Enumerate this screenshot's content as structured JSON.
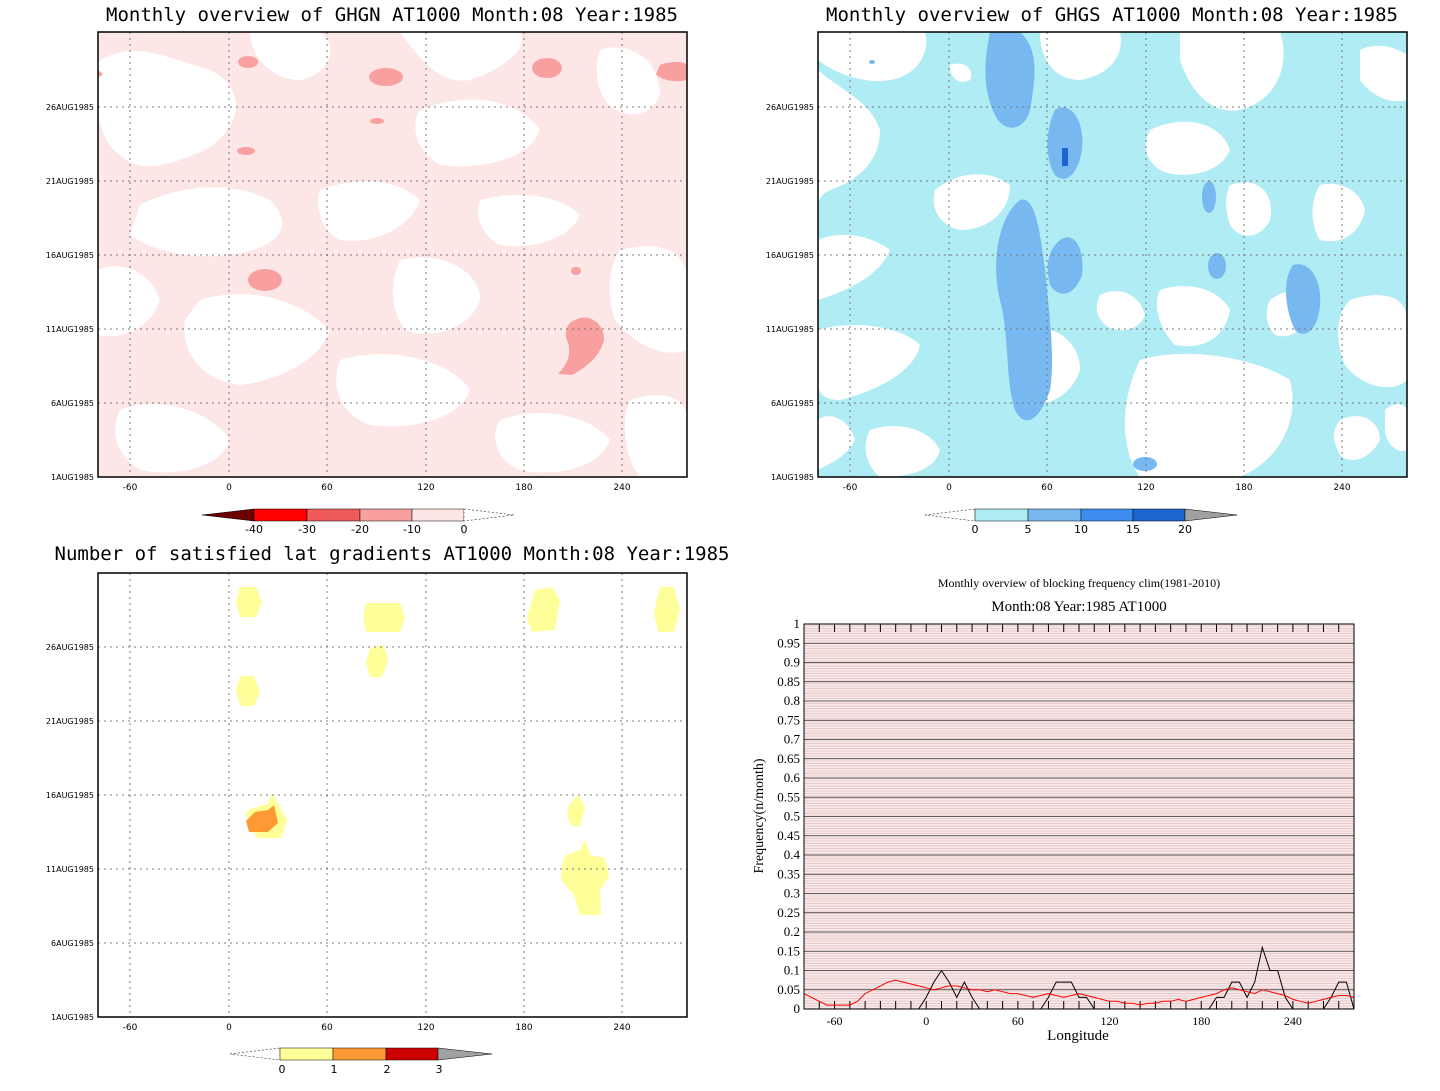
{
  "panels": {
    "ghgn": {
      "title": "Monthly overview of GHGN AT1000 Month:08 Year:1985"
    },
    "ghgs": {
      "title": "Monthly overview of GHGS AT1000 Month:08 Year:1985"
    },
    "grad": {
      "title": "Number of satisfied lat gradients AT1000 Month:08 Year:1985"
    },
    "freq": {
      "title_line1": "Monthly overview of blocking frequency clim(1981-2010)",
      "title_line2": "Month:08 Year:1985  AT1000"
    }
  },
  "chart_data": [
    {
      "type": "heatmap",
      "title": "Monthly overview of GHGN AT1000 Month:08 Year:1985",
      "x_ticks": [
        "-60",
        "0",
        "60",
        "120",
        "180",
        "240"
      ],
      "y_ticks": [
        "1AUG1985",
        "6AUG1985",
        "11AUG1985",
        "16AUG1985",
        "21AUG1985",
        "26AUG1985"
      ],
      "colorbar": {
        "labels": [
          "-40",
          "-30",
          "-20",
          "-10",
          "0"
        ],
        "colors": [
          "#6b0000",
          "#ff0000",
          "#f05a5a",
          "#f8a0a0",
          "#fde6e6"
        ]
      }
    },
    {
      "type": "heatmap",
      "title": "Monthly overview of GHGS AT1000 Month:08 Year:1985",
      "x_ticks": [
        "-60",
        "0",
        "60",
        "120",
        "180",
        "240"
      ],
      "y_ticks": [
        "1AUG1985",
        "6AUG1985",
        "11AUG1985",
        "16AUG1985",
        "21AUG1985",
        "26AUG1985"
      ],
      "colorbar": {
        "labels": [
          "0",
          "5",
          "10",
          "15",
          "20"
        ],
        "colors": [
          "#b0ecf4",
          "#78b8f0",
          "#3c8cf0",
          "#1c64d0",
          "#a0a0a0"
        ]
      }
    },
    {
      "type": "heatmap",
      "title": "Number of satisfied lat gradients AT1000 Month:08 Year:1985",
      "x_ticks": [
        "-60",
        "0",
        "60",
        "120",
        "180",
        "240"
      ],
      "y_ticks": [
        "1AUG1985",
        "6AUG1985",
        "11AUG1985",
        "16AUG1985",
        "21AUG1985",
        "26AUG1985"
      ],
      "colorbar": {
        "labels": [
          "0",
          "1",
          "2",
          "3"
        ],
        "colors": [
          "#ffff99",
          "#ff9933",
          "#cc0000",
          "#a0a0a0"
        ]
      }
    },
    {
      "type": "line",
      "xlabel": "Longitude",
      "ylabel": "Frequency(n/month)",
      "xlim": [
        -80,
        280
      ],
      "ylim": [
        0,
        1
      ],
      "x_ticks": [
        "-60",
        "0",
        "60",
        "120",
        "180",
        "240"
      ],
      "y_ticks": [
        "0",
        "0.05",
        "0.1",
        "0.15",
        "0.2",
        "0.25",
        "0.3",
        "0.35",
        "0.4",
        "0.45",
        "0.5",
        "0.55",
        "0.6",
        "0.65",
        "0.7",
        "0.75",
        "0.8",
        "0.85",
        "0.9",
        "0.95",
        "1"
      ],
      "series": [
        {
          "color": "#000000",
          "x": [
            -80,
            -75,
            -70,
            -5,
            0,
            5,
            10,
            15,
            20,
            25,
            30,
            35,
            40,
            45,
            50,
            55,
            60,
            65,
            70,
            75,
            80,
            85,
            90,
            95,
            100,
            105,
            110,
            115,
            120,
            125,
            130,
            135,
            140,
            145,
            150,
            155,
            160,
            165,
            170,
            175,
            180,
            185,
            190,
            195,
            200,
            205,
            210,
            215,
            220,
            225,
            230,
            235,
            240,
            245,
            250,
            255,
            260,
            265,
            270,
            275,
            280
          ],
          "y": [
            0,
            0,
            0,
            0,
            0.03,
            0.07,
            0.1,
            0.07,
            0.03,
            0.07,
            0.03,
            0,
            0,
            0,
            0,
            0,
            0,
            0,
            0,
            0,
            0.03,
            0.07,
            0.07,
            0.07,
            0.03,
            0.03,
            0,
            0,
            0,
            0,
            0,
            0,
            0,
            0,
            0,
            0,
            0,
            0,
            0,
            0,
            0,
            0,
            0.03,
            0.03,
            0.07,
            0.07,
            0.03,
            0.07,
            0.16,
            0.1,
            0.1,
            0.03,
            0,
            0,
            0,
            0,
            0,
            0.03,
            0.07,
            0.07,
            0
          ]
        },
        {
          "color": "#ff0000",
          "x": [
            -80,
            -75,
            -70,
            -65,
            -60,
            -55,
            -50,
            -45,
            -40,
            -35,
            -30,
            -25,
            -20,
            -15,
            -10,
            -5,
            0,
            5,
            10,
            15,
            20,
            25,
            30,
            35,
            40,
            45,
            50,
            55,
            60,
            65,
            70,
            75,
            80,
            85,
            90,
            95,
            100,
            105,
            110,
            115,
            120,
            125,
            130,
            135,
            140,
            145,
            150,
            155,
            160,
            165,
            170,
            175,
            180,
            185,
            190,
            195,
            200,
            205,
            210,
            215,
            220,
            225,
            230,
            235,
            240,
            245,
            250,
            255,
            260,
            265,
            270,
            275,
            280
          ],
          "y": [
            0.04,
            0.03,
            0.02,
            0.01,
            0.01,
            0.01,
            0.01,
            0.02,
            0.04,
            0.05,
            0.06,
            0.07,
            0.075,
            0.07,
            0.065,
            0.06,
            0.055,
            0.05,
            0.055,
            0.06,
            0.06,
            0.055,
            0.05,
            0.05,
            0.045,
            0.05,
            0.045,
            0.04,
            0.04,
            0.035,
            0.03,
            0.035,
            0.04,
            0.035,
            0.03,
            0.035,
            0.04,
            0.035,
            0.03,
            0.025,
            0.02,
            0.02,
            0.015,
            0.015,
            0.01,
            0.015,
            0.015,
            0.02,
            0.02,
            0.025,
            0.02,
            0.025,
            0.03,
            0.035,
            0.04,
            0.05,
            0.055,
            0.05,
            0.045,
            0.04,
            0.05,
            0.045,
            0.04,
            0.035,
            0.025,
            0.02,
            0.015,
            0.02,
            0.025,
            0.03,
            0.035,
            0.035,
            0.03
          ]
        }
      ]
    }
  ]
}
